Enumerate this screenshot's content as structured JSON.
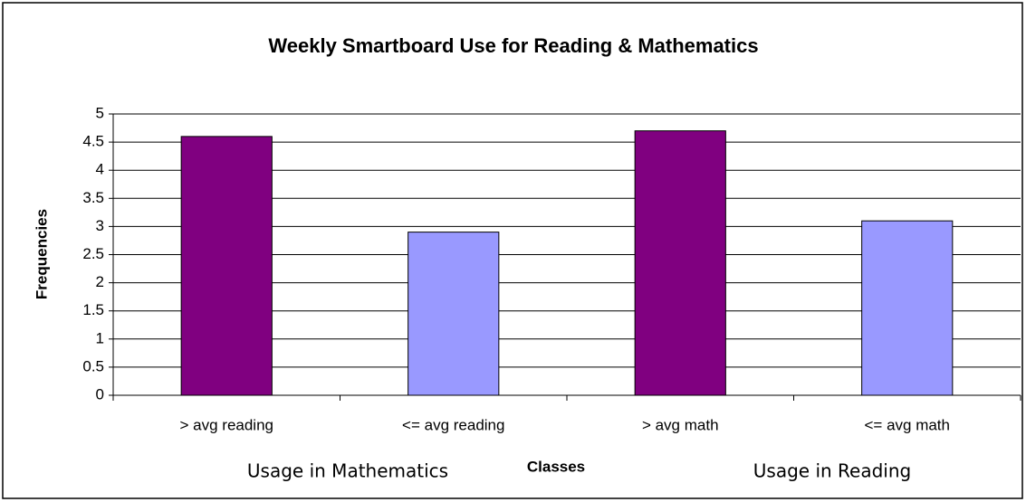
{
  "chart_data": {
    "type": "bar",
    "title": "Weekly Smartboard Use for Reading & Mathematics",
    "x_label": "Classes",
    "y_label": "Frequencies",
    "annotations": [
      "Usage in Mathematics",
      "Usage in Reading"
    ],
    "categories": [
      "> avg reading",
      "<= avg reading",
      "> avg math",
      "<= avg math"
    ],
    "values": [
      4.6,
      2.9,
      4.7,
      3.1
    ],
    "colors": [
      "#800080",
      "#9999ff",
      "#800080",
      "#9999ff"
    ],
    "ylim": [
      0,
      5
    ],
    "yticks": [
      0,
      0.5,
      1,
      1.5,
      2,
      2.5,
      3,
      3.5,
      4,
      4.5,
      5
    ],
    "grid": true
  }
}
